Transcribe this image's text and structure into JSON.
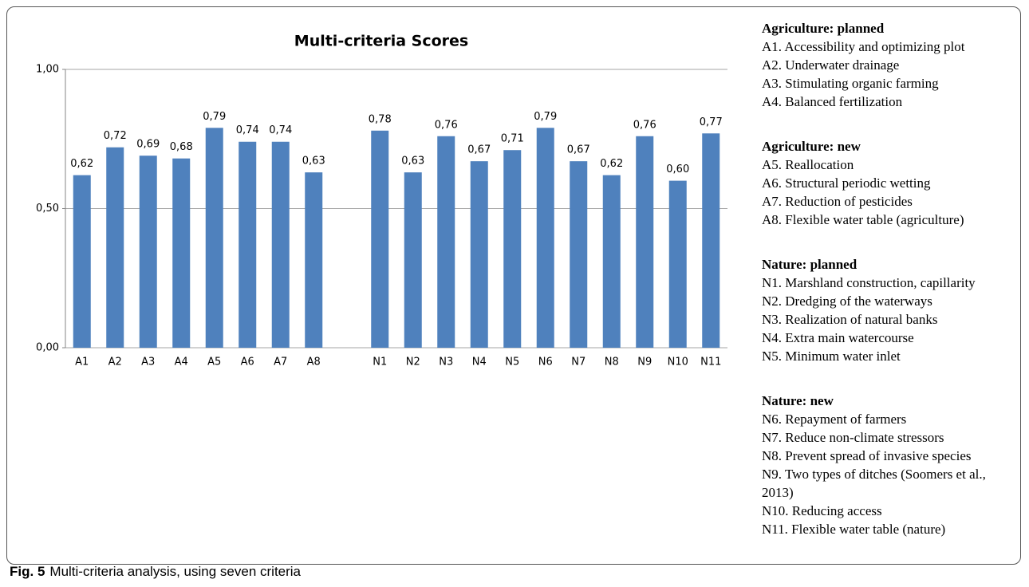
{
  "chart_data": {
    "type": "bar",
    "title": "Multi-criteria Scores",
    "categories": [
      "A1",
      "A2",
      "A3",
      "A4",
      "A5",
      "A6",
      "A7",
      "A8",
      null,
      "N1",
      "N2",
      "N3",
      "N4",
      "N5",
      "N6",
      "N7",
      "N8",
      "N9",
      "N10",
      "N11"
    ],
    "values": [
      0.62,
      0.72,
      0.69,
      0.68,
      0.79,
      0.74,
      0.74,
      0.63,
      null,
      0.78,
      0.63,
      0.76,
      0.67,
      0.71,
      0.79,
      0.67,
      0.62,
      0.76,
      0.6,
      0.77
    ],
    "value_labels": [
      "0,62",
      "0,72",
      "0,69",
      "0,68",
      "0,79",
      "0,74",
      "0,74",
      "0,63",
      null,
      "0,78",
      "0,63",
      "0,76",
      "0,67",
      "0,71",
      "0,79",
      "0,67",
      "0,62",
      "0,76",
      "0,60",
      "0,77"
    ],
    "color": "#4f81bd",
    "ylim": [
      0,
      1
    ],
    "yticks": [
      {
        "value": 0,
        "label": "0,00"
      },
      {
        "value": 0.5,
        "label": "0,50"
      },
      {
        "value": 1,
        "label": "1,00"
      }
    ],
    "grid": true
  },
  "legend": [
    {
      "heading": "Agriculture: planned",
      "items": [
        "A1. Accessibility and optimizing plot",
        "A2. Underwater drainage",
        "A3. Stimulating organic farming",
        "A4. Balanced fertilization"
      ]
    },
    {
      "heading": "Agriculture: new",
      "items": [
        "A5. Reallocation",
        "A6. Structural periodic wetting",
        "A7. Reduction of pesticides",
        "A8. Flexible water table (agriculture)"
      ]
    },
    {
      "heading": "Nature: planned",
      "items": [
        "N1. Marshland construction, capillarity",
        "N2. Dredging of the waterways",
        "N3. Realization of natural banks",
        "N4. Extra main watercourse",
        "N5. Minimum water inlet"
      ]
    },
    {
      "heading": "Nature: new",
      "items": [
        "N6. Repayment of farmers",
        "N7. Reduce non-climate stressors",
        "N8. Prevent spread of invasive species",
        "N9. Two types of ditches (Soomers et al., 2013)",
        "N10. Reducing access",
        "N11. Flexible water table (nature)"
      ]
    }
  ],
  "caption": {
    "label": "Fig. 5",
    "text": "Multi-criteria analysis, using seven criteria"
  }
}
